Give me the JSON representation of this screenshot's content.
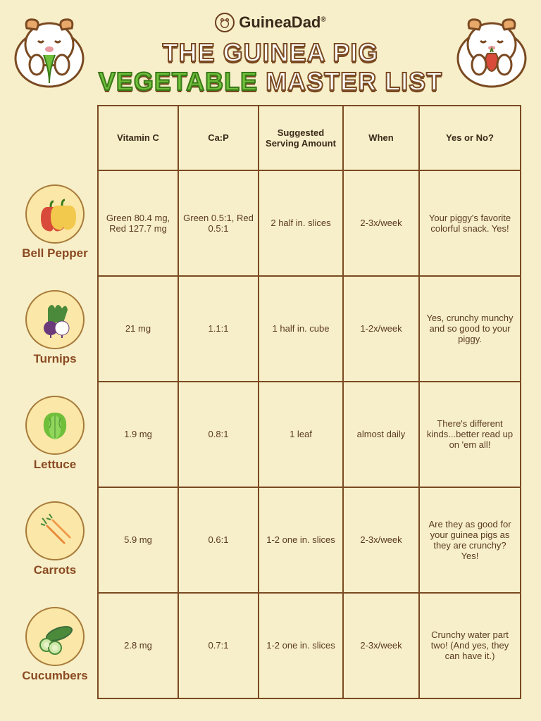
{
  "brand": {
    "name": "GuineaDad",
    "reg": "®"
  },
  "title": {
    "line1": "THE GUINEA PIG",
    "veg": "VEGETABLE",
    "rest": "MASTER LIST"
  },
  "columns": [
    "Vitamin C",
    "Ca:P",
    "Suggested Serving Amount",
    "When",
    "Yes or No?"
  ],
  "rows": [
    {
      "name": "Bell Pepper",
      "vitc": "Green 80.4 mg, Red 127.7 mg",
      "cap": "Green 0.5:1, Red 0.5:1",
      "serving": "2 half in. slices",
      "when": "2-3x/week",
      "yes": "Your piggy's favorite colorful snack. Yes!"
    },
    {
      "name": "Turnips",
      "vitc": "21 mg",
      "cap": "1.1:1",
      "serving": "1 half in. cube",
      "when": "1-2x/week",
      "yes": "Yes, crunchy munchy and so good to your piggy."
    },
    {
      "name": "Lettuce",
      "vitc": "1.9 mg",
      "cap": "0.8:1",
      "serving": "1 leaf",
      "when": "almost daily",
      "yes": "There's different kinds...better read up on 'em all!"
    },
    {
      "name": "Carrots",
      "vitc": "5.9 mg",
      "cap": "0.6:1",
      "serving": "1-2 one in. slices",
      "when": "2-3x/week",
      "yes": "Are they as good for your guinea pigs as they are crunchy? Yes!"
    },
    {
      "name": "Cucumbers",
      "vitc": "2.8 mg",
      "cap": "0.7:1",
      "serving": "1-2 one in. slices",
      "when": "2-3x/week",
      "yes": "Crunchy water part two! (And yes, they can have it.)"
    }
  ],
  "colors": {
    "bg": "#f7efc9",
    "border": "#7a4a22",
    "iconBg": "#fbe7a8",
    "iconBorder": "#a77b3a",
    "text": "#5a3a22",
    "labelText": "#8a4a22",
    "vegGreen": "#6fbf3a"
  }
}
